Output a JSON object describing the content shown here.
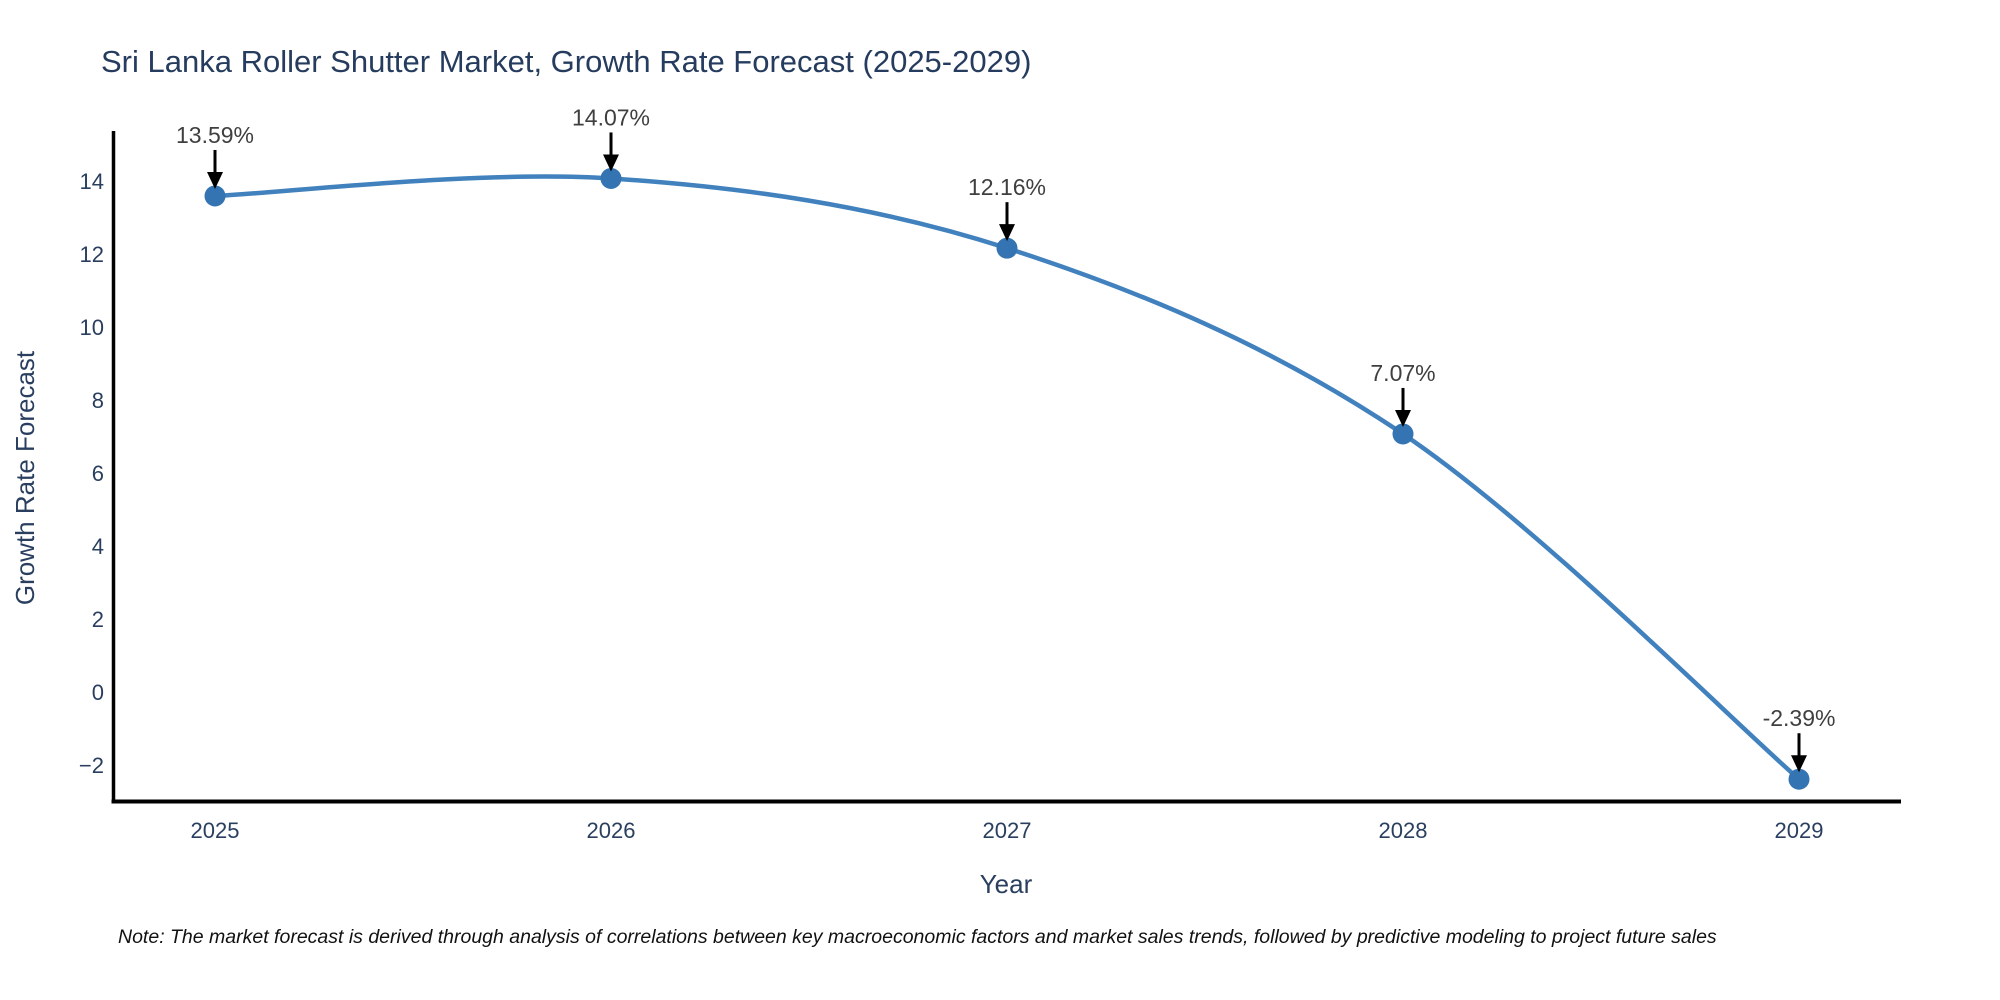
{
  "chart_data": {
    "type": "line",
    "title": "Sri Lanka Roller Shutter Market, Growth Rate Forecast (2025-2029)",
    "xlabel": "Year",
    "ylabel": "Growth Rate Forecast",
    "categories": [
      "2025",
      "2026",
      "2027",
      "2028",
      "2029"
    ],
    "series": [
      {
        "name": "Growth Rate Forecast",
        "values": [
          13.59,
          14.07,
          12.16,
          7.07,
          -2.39
        ]
      }
    ],
    "point_labels": [
      "13.59%",
      "14.07%",
      "12.16%",
      "7.07%",
      "-2.39%"
    ],
    "yticks": [
      14,
      12,
      10,
      8,
      6,
      4,
      2,
      0,
      -2
    ],
    "ylim": [
      -3.0,
      15.4
    ],
    "grid": false,
    "legend": "none",
    "line_shape": "spline",
    "annotation_style": "down-arrow-to-point",
    "colors": {
      "line": "#4181bd",
      "marker": "#3474b2",
      "arrow": "#000000",
      "axis": "#000000",
      "text": "#2a3f5f",
      "annotation": "#3f3f3f"
    },
    "note": "Note: The market forecast is derived through analysis of correlations between key macroeconomic factors and market sales trends, followed by predictive modeling to project future sales"
  }
}
